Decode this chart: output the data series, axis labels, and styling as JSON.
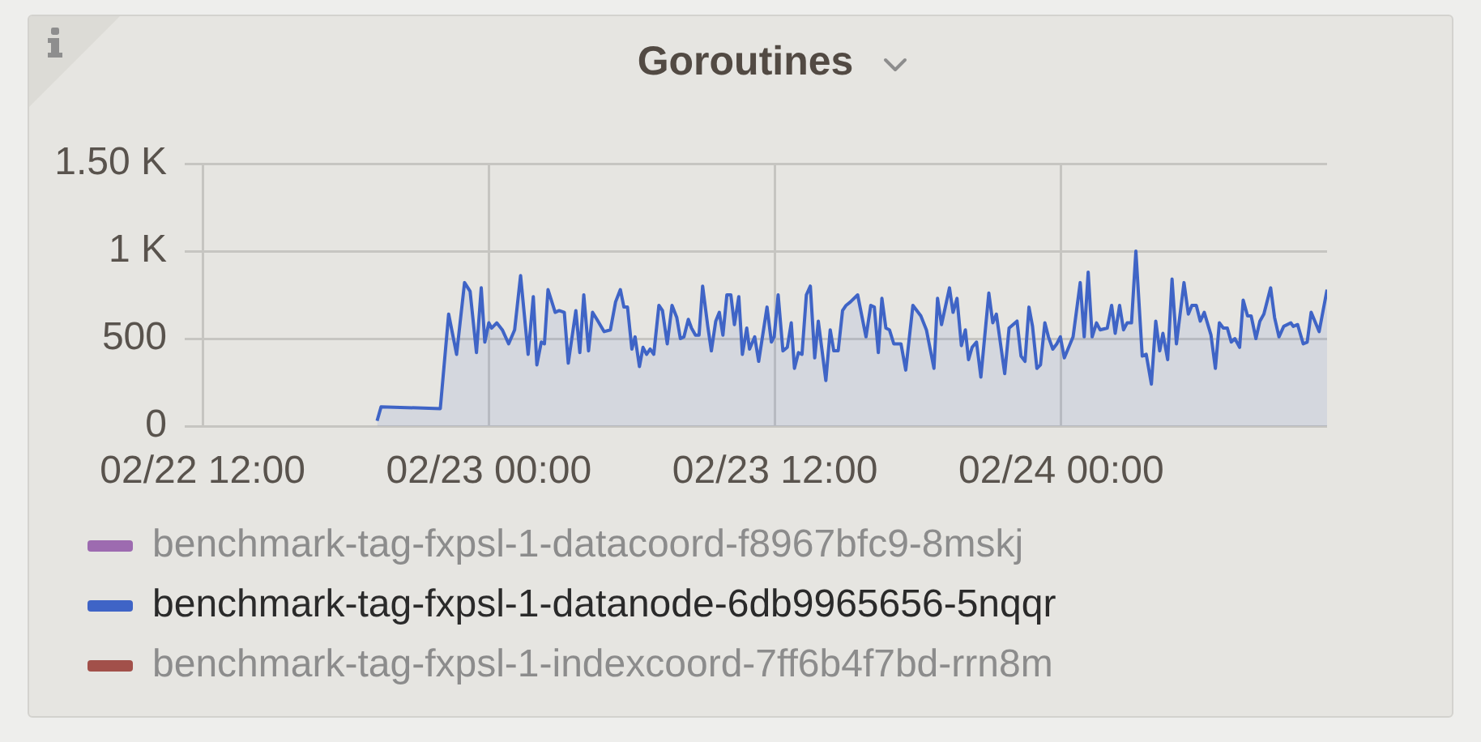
{
  "chart_data": {
    "type": "area",
    "title": "Goroutines",
    "xlim": [
      "--02-22T11:15",
      "--02-24T11:09"
    ],
    "xticks": [
      {
        "value": "--02-22T12:00",
        "label": "02/22 12:00"
      },
      {
        "value": "--02-23T00:00",
        "label": "02/23 00:00"
      },
      {
        "value": "--02-23T12:00",
        "label": "02/23 12:00"
      },
      {
        "value": "--02-24T00:00",
        "label": "02/24 00:00"
      }
    ],
    "ylim": [
      0,
      1500
    ],
    "yticks": [
      0,
      500,
      {
        "value": 1000,
        "label": "1 K"
      },
      {
        "value": 1500,
        "label": "1.50 K"
      }
    ],
    "grid": true,
    "legend": "bottom left",
    "series": [
      {
        "name": "benchmark-tag-fxpsl-1-datacoord-f8967bfc9-8mskj",
        "color": "#9d6bb0"
      },
      {
        "name": "benchmark-tag-fxpsl-1-datanode-6db9965656-5nqqr",
        "color": "#3f64c6",
        "x": [
          "--02-22T19:19",
          "--02-22T19:29",
          "--02-22T21:58",
          "--02-22T22:19",
          "--02-22T22:39",
          "--02-22T22:59",
          "--02-22T23:13",
          "--02-22T23:29",
          "--02-22T23:41",
          "--02-22T23:50",
          "--02-23T00:00",
          "--02-23T00:07",
          "--02-23T00:20",
          "--02-23T00:34",
          "--02-23T00:50",
          "--02-23T01:05",
          "--02-23T01:20",
          "--02-23T01:39",
          "--02-23T01:52",
          "--02-23T02:01",
          "--02-23T02:12",
          "--02-23T02:20",
          "--02-23T02:29",
          "--02-23T02:47",
          "--02-23T02:57",
          "--02-23T03:10",
          "--02-23T03:20",
          "--02-23T03:39",
          "--02-23T03:49",
          "--02-23T03:59",
          "--02-23T04:11",
          "--02-23T04:21",
          "--02-23T04:32",
          "--02-23T04:50",
          "--02-23T05:06",
          "--02-23T05:19",
          "--02-23T05:31",
          "--02-23T05:40",
          "--02-23T05:49",
          "--02-23T06:00",
          "--02-23T06:08",
          "--02-23T06:19",
          "--02-23T06:28",
          "--02-23T06:37",
          "--02-23T06:46",
          "--02-23T06:55",
          "--02-23T07:08",
          "--02-23T07:17",
          "--02-23T07:29",
          "--02-23T07:41",
          "--02-23T07:53",
          "--02-23T08:02",
          "--02-23T08:11",
          "--02-23T08:22",
          "--02-23T08:30",
          "--02-23T08:40",
          "--02-23T08:49",
          "--02-23T08:58",
          "--02-23T09:11",
          "--02-23T09:20",
          "--02-23T09:31",
          "--02-23T09:40",
          "--02-23T09:49",
          "--02-23T09:59",
          "--02-23T10:09",
          "--02-23T10:18",
          "--02-23T10:29",
          "--02-23T10:38",
          "--02-23T10:49",
          "--02-23T10:56",
          "--02-23T11:09",
          "--02-23T11:19",
          "--02-23T11:40",
          "--02-23T11:51",
          "--02-23T11:58",
          "--02-23T12:08",
          "--02-23T12:20",
          "--02-23T12:31",
          "--02-23T12:41",
          "--02-23T12:49",
          "--02-23T12:59",
          "--02-23T13:08",
          "--02-23T13:19",
          "--02-23T13:29",
          "--02-23T13:40",
          "--02-23T13:49",
          "--02-23T13:58",
          "--02-23T14:08",
          "--02-23T14:19",
          "--02-23T14:28",
          "--02-23T14:39",
          "--02-23T14:50",
          "--02-23T14:59",
          "--02-23T15:10",
          "--02-23T15:28",
          "--02-23T15:49",
          "--02-23T16:01",
          "--02-23T16:10",
          "--02-23T16:20",
          "--02-23T16:29",
          "--02-23T16:39",
          "--02-23T16:48",
          "--02-23T16:59",
          "--02-23T17:17",
          "--02-23T17:29",
          "--02-23T17:47",
          "--02-23T18:07",
          "--02-23T18:21",
          "--02-23T18:40",
          "--02-23T18:49",
          "--02-23T18:59",
          "--02-23T19:19",
          "--02-23T19:28",
          "--02-23T19:38",
          "--02-23T19:49",
          "--02-23T19:59",
          "--02-23T20:07",
          "--02-23T20:16",
          "--02-23T20:27",
          "--02-23T20:38",
          "--02-23T20:58",
          "--02-23T21:08",
          "--02-23T21:17",
          "--02-23T21:38",
          "--02-23T21:49",
          "--02-23T22:09",
          "--02-23T22:19",
          "--02-23T22:29",
          "--02-23T22:39",
          "--02-23T22:48",
          "--02-23T22:59",
          "--02-23T23:08",
          "--02-23T23:19",
          "--02-23T23:28",
          "--02-23T23:39",
          "--02-23T23:49",
          "--02-23T23:58",
          "--02-24T00:08",
          "--02-24T00:30",
          "--02-24T00:48",
          "--02-24T00:58",
          "--02-24T01:08",
          "--02-24T01:18",
          "--02-24T01:29",
          "--02-24T01:38",
          "--02-24T01:56",
          "--02-24T02:07",
          "--02-24T02:16",
          "--02-24T02:27",
          "--02-24T02:37",
          "--02-24T02:46",
          "--02-24T02:57",
          "--02-24T03:08",
          "--02-24T03:24",
          "--02-24T03:34",
          "--02-24T03:47",
          "--02-24T03:58",
          "--02-24T04:08",
          "--02-24T04:16",
          "--02-24T04:28",
          "--02-24T04:39",
          "--02-24T04:50",
          "--02-24T05:09",
          "--02-24T05:20",
          "--02-24T05:29",
          "--02-24T05:40",
          "--02-24T05:50",
          "--02-24T06:00",
          "--02-24T06:17",
          "--02-24T06:28",
          "--02-24T06:38",
          "--02-24T06:48",
          "--02-24T06:58",
          "--02-24T07:08",
          "--02-24T07:17",
          "--02-24T07:29",
          "--02-24T07:38",
          "--02-24T07:49",
          "--02-24T07:58",
          "--02-24T08:10",
          "--02-24T08:20",
          "--02-24T08:30",
          "--02-24T08:47",
          "--02-24T08:57",
          "--02-24T09:08",
          "--02-24T09:20",
          "--02-24T09:38",
          "--02-24T09:44",
          "--02-24T09:55",
          "--02-24T10:09",
          "--02-24T10:19",
          "--02-24T10:29",
          "--02-24T10:49",
          "--02-24T11:09"
        ],
        "values": [
          30,
          110,
          100,
          640,
          410,
          820,
          770,
          420,
          790,
          480,
          590,
          560,
          590,
          550,
          470,
          550,
          860,
          410,
          740,
          350,
          480,
          470,
          780,
          650,
          660,
          650,
          360,
          660,
          420,
          750,
          430,
          650,
          610,
          540,
          550,
          710,
          780,
          680,
          680,
          440,
          510,
          340,
          450,
          410,
          440,
          410,
          690,
          660,
          470,
          690,
          620,
          500,
          510,
          610,
          560,
          520,
          520,
          800,
          570,
          430,
          600,
          650,
          520,
          750,
          750,
          580,
          740,
          410,
          560,
          440,
          510,
          370,
          680,
          480,
          510,
          750,
          430,
          450,
          590,
          330,
          420,
          410,
          750,
          800,
          390,
          600,
          440,
          260,
          550,
          430,
          430,
          660,
          690,
          710,
          750,
          510,
          690,
          680,
          420,
          730,
          560,
          550,
          470,
          470,
          320,
          690,
          630,
          550,
          330,
          730,
          580,
          790,
          650,
          730,
          460,
          550,
          380,
          450,
          480,
          280,
          760,
          590,
          640,
          300,
          560,
          600,
          400,
          370,
          680,
          570,
          330,
          350,
          590,
          510,
          440,
          470,
          510,
          390,
          510,
          820,
          510,
          880,
          510,
          590,
          550,
          560,
          690,
          530,
          690,
          550,
          590,
          590,
          1000,
          400,
          410,
          240,
          600,
          430,
          530,
          380,
          840,
          470,
          820,
          640,
          690,
          690,
          600,
          650,
          520,
          330,
          590,
          560,
          560,
          480,
          500,
          450,
          720,
          630,
          630,
          500,
          600,
          640,
          790,
          620,
          510,
          570,
          590,
          570,
          580,
          470,
          480,
          650,
          540,
          780
        ]
      },
      {
        "name": "benchmark-tag-fxpsl-1-indexcoord-7ff6b4f7bd-rrn8m",
        "color": "#a2504a"
      }
    ]
  }
}
